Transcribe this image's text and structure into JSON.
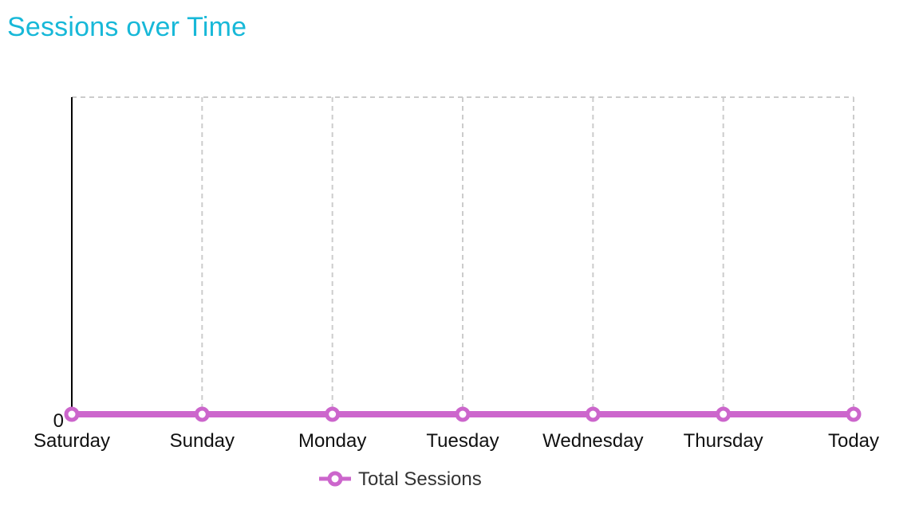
{
  "header": {
    "title": "Sessions over Time"
  },
  "colors": {
    "title": "#17b8d8",
    "series": "#cc66cc",
    "grid": "#cccccc",
    "axis": "#000000"
  },
  "chart_data": {
    "type": "line",
    "title": "Sessions over Time",
    "xlabel": "",
    "ylabel": "",
    "categories": [
      "Saturday",
      "Sunday",
      "Monday",
      "Tuesday",
      "Wednesday",
      "Thursday",
      "Today"
    ],
    "y_ticks": [
      "0"
    ],
    "ylim": [
      0,
      1
    ],
    "grid": "vertical dashed",
    "legend_position": "bottom",
    "series": [
      {
        "name": "Total Sessions",
        "values": [
          0,
          0,
          0,
          0,
          0,
          0,
          0
        ],
        "color": "#cc66cc",
        "marker": "hollow-circle"
      }
    ]
  }
}
